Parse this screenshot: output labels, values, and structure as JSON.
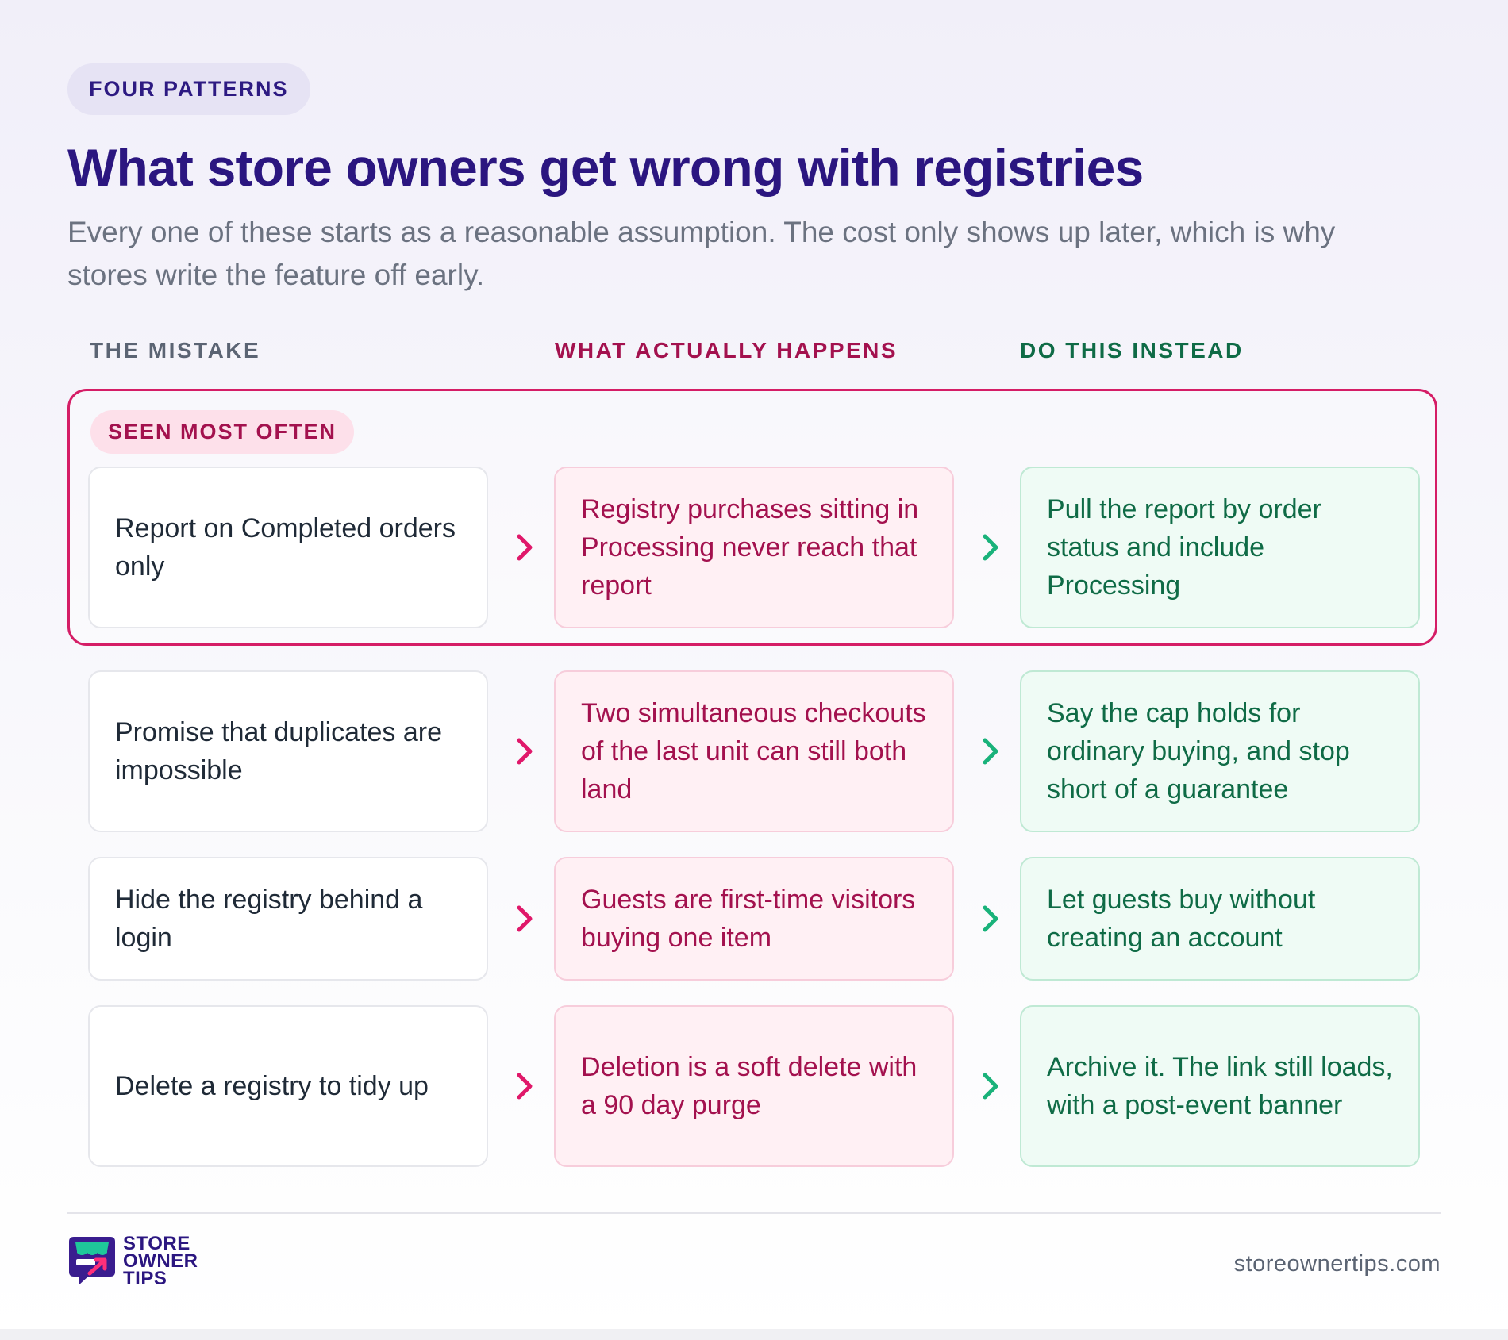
{
  "header": {
    "eyebrow": "FOUR PATTERNS",
    "title": "What store owners get wrong with registries",
    "subtitle": "Every one of these starts as a reasonable assumption. The cost only shows up later, which is why stores write the feature off early."
  },
  "columns": {
    "mistake": "THE MISTAKE",
    "happens": "WHAT ACTUALLY HAPPENS",
    "instead": "DO THIS INSTEAD"
  },
  "featured_label": "SEEN MOST OFTEN",
  "rows": [
    {
      "mistake": "Report on Completed orders only",
      "happens": "Registry purchases sitting in Processing never reach that report",
      "instead": "Pull the report by order status and include Processing"
    },
    {
      "mistake": "Promise that duplicates are impossible",
      "happens": "Two simultaneous checkouts of the last unit can still both land",
      "instead": "Say the cap holds for ordinary buying, and stop short of a guarantee"
    },
    {
      "mistake": "Hide the registry behind a login",
      "happens": "Guests are first-time visitors buying one item",
      "instead": "Let guests buy without creating an account"
    },
    {
      "mistake": "Delete a registry to tidy up",
      "happens": "Deletion is a soft delete with a 90 day purge",
      "instead": "Archive it. The link still loads, with a post-event banner"
    }
  ],
  "footer": {
    "logo_line1": "STORE",
    "logo_line2": "OWNER",
    "logo_line3": "TIPS",
    "site": "storeownertips.com"
  },
  "colors": {
    "brand": "#2b1680",
    "mistake_header": "#5b6473",
    "happens": "#a3114e",
    "instead": "#0f6b46",
    "featured_border": "#d51d66",
    "arrow_pink": "#e0186a",
    "arrow_green": "#19b27a"
  },
  "icons": {
    "arrow_to_happens": "chevron-right-icon",
    "arrow_to_instead": "chevron-right-icon",
    "logo": "store-owner-tips-logo"
  }
}
